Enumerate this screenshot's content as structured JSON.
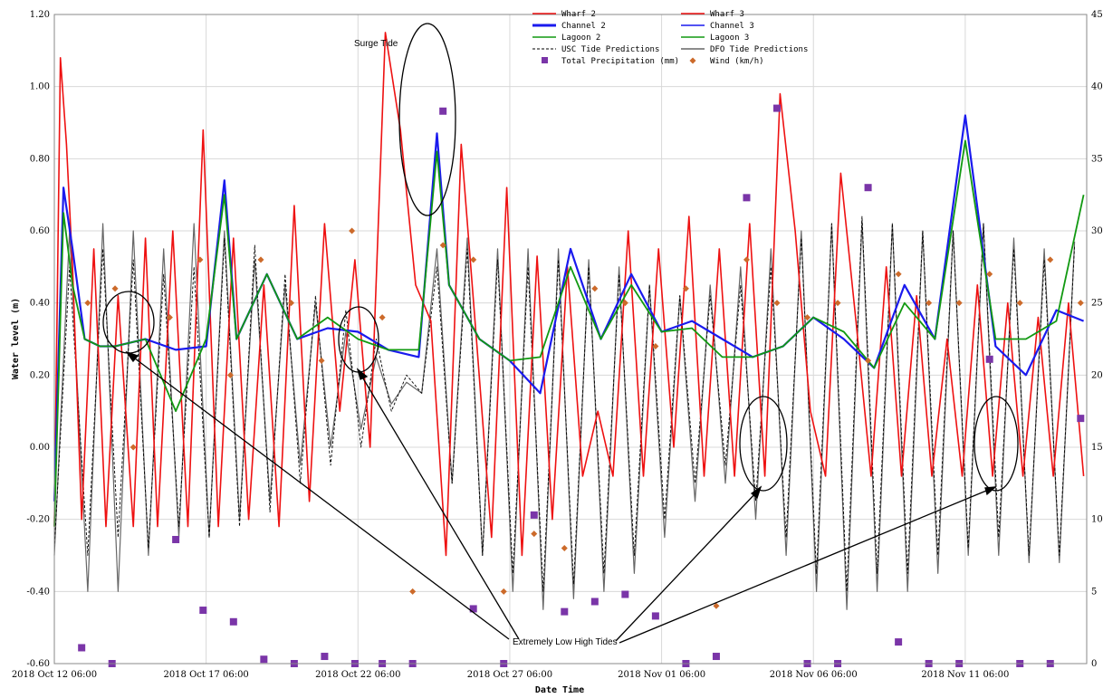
{
  "chart_data": {
    "type": "line",
    "xlabel": "Date Time",
    "ylabel": "Water level (m)",
    "xlim": [
      "2018-10-12 06:00",
      "2018-11-15 06:00"
    ],
    "ylim": [
      -0.6,
      1.2
    ],
    "y2lim": [
      0,
      45
    ],
    "x_ticks": [
      "2018 Oct 12  06:00",
      "2018 Oct 17  06:00",
      "2018 Oct 22  06:00",
      "2018 Oct 27  06:00",
      "2018 Nov 01  06:00",
      "2018 Nov 06  06:00",
      "2018 Nov 11  06:00"
    ],
    "y_ticks": [
      "-0.60",
      "-0.40",
      "-0.20",
      "0.00",
      "0.20",
      "0.40",
      "0.60",
      "0.80",
      "1.00",
      "1.20"
    ],
    "y2_ticks": [
      "0",
      "5",
      "10",
      "15",
      "20",
      "25",
      "30",
      "35",
      "40",
      "45"
    ],
    "grid": true,
    "legend_position": "top-center",
    "legend": [
      {
        "label": "Wharf 2",
        "color": "#ee1111",
        "style": "line"
      },
      {
        "label": "Wharf 3",
        "color": "#ee1111",
        "style": "line"
      },
      {
        "label": "Channel 2",
        "color": "#1a1aee",
        "style": "thick-line"
      },
      {
        "label": "Channel 3",
        "color": "#1a1aee",
        "style": "line"
      },
      {
        "label": "Lagoon 2",
        "color": "#119911",
        "style": "line"
      },
      {
        "label": "Lagoon 3",
        "color": "#119911",
        "style": "line"
      },
      {
        "label": "USC Tide Predictions",
        "color": "#000000",
        "style": "dashed"
      },
      {
        "label": "DFO Tide Predictions",
        "color": "#666666",
        "style": "line"
      },
      {
        "label": "Total Precipitation (mm)",
        "color": "#7a35a8",
        "style": "square"
      },
      {
        "label": "Wind (km/h)",
        "color": "#cc6a2a",
        "style": "diamond"
      }
    ],
    "annotations": [
      "Surge Tide",
      "Extremely Low High Tides"
    ],
    "series": [
      {
        "name": "Wharf 2",
        "x": [
          0,
          0.2,
          0.4,
          0.6,
          0.9,
          1.3,
          1.7,
          2.1,
          2.6,
          3.0,
          3.4,
          3.9,
          4.4,
          4.9,
          5.4,
          5.9,
          6.4,
          6.9,
          7.4,
          7.9,
          8.4,
          8.9,
          9.4,
          9.9,
          10.4,
          10.9,
          11.4,
          11.9,
          12.4,
          12.9,
          13.4,
          13.9,
          14.4,
          14.9,
          15.4,
          15.9,
          16.4,
          16.9,
          17.4,
          17.9,
          18.4,
          18.9,
          19.4,
          19.9,
          20.4,
          20.9,
          21.4,
          21.9,
          22.4,
          22.9,
          23.4,
          23.9,
          24.4,
          24.9,
          25.4,
          25.9,
          26.4,
          26.9,
          27.4,
          27.9,
          28.4,
          28.9,
          29.4,
          29.9,
          30.4,
          30.9,
          31.4,
          31.9,
          32.4,
          32.9,
          33.4,
          33.9
        ],
        "values": [
          -0.22,
          1.08,
          0.84,
          0.5,
          -0.2,
          0.55,
          -0.22,
          0.42,
          -0.22,
          0.58,
          -0.22,
          0.6,
          -0.22,
          0.88,
          -0.22,
          0.58,
          -0.2,
          0.45,
          -0.22,
          0.67,
          -0.15,
          0.62,
          0.1,
          0.52,
          0.0,
          1.15,
          0.88,
          0.45,
          0.35,
          -0.3,
          0.84,
          0.3,
          -0.25,
          0.72,
          -0.3,
          0.53,
          -0.2,
          0.5,
          -0.08,
          0.1,
          -0.08,
          0.6,
          -0.08,
          0.55,
          0.0,
          0.64,
          -0.08,
          0.55,
          -0.08,
          0.62,
          -0.08,
          0.98,
          0.6,
          0.1,
          -0.08,
          0.76,
          0.35,
          -0.08,
          0.5,
          -0.08,
          0.42,
          -0.08,
          0.3,
          -0.08,
          0.45,
          -0.08,
          0.4,
          -0.08,
          0.36,
          -0.08,
          0.4,
          -0.08
        ]
      },
      {
        "name": "Channel 2",
        "x": [
          0,
          0.3,
          0.6,
          1.0,
          1.5,
          2.0,
          3.0,
          4.0,
          5.0,
          5.6,
          6.0,
          7.0,
          8.0,
          9.0,
          10.0,
          11.0,
          12.0,
          12.6,
          13.0,
          14.0,
          15.0,
          16.0,
          17.0,
          18.0,
          19.0,
          20.0,
          21.0,
          22.0,
          23.0,
          24.0,
          25.0,
          26.0,
          27.0,
          28.0,
          29.0,
          30.0,
          31.0,
          32.0,
          33.0,
          33.9
        ],
        "values": [
          -0.15,
          0.72,
          0.55,
          0.3,
          0.28,
          0.28,
          0.3,
          0.27,
          0.28,
          0.74,
          0.3,
          0.48,
          0.3,
          0.33,
          0.32,
          0.27,
          0.25,
          0.87,
          0.45,
          0.3,
          0.24,
          0.15,
          0.55,
          0.3,
          0.48,
          0.32,
          0.35,
          0.3,
          0.25,
          0.28,
          0.36,
          0.3,
          0.22,
          0.45,
          0.3,
          0.92,
          0.28,
          0.2,
          0.38,
          0.35
        ]
      },
      {
        "name": "Lagoon 2",
        "x": [
          0,
          0.3,
          0.6,
          1.0,
          1.5,
          2.0,
          3.0,
          4.0,
          5.0,
          5.6,
          6.0,
          7.0,
          8.0,
          9.0,
          10.0,
          11.0,
          12.0,
          12.6,
          13.0,
          14.0,
          15.0,
          16.0,
          17.0,
          18.0,
          19.0,
          20.0,
          21.0,
          22.0,
          23.0,
          24.0,
          25.0,
          26.0,
          27.0,
          28.0,
          29.0,
          30.0,
          31.0,
          32.0,
          33.0,
          33.9
        ],
        "values": [
          -0.22,
          0.65,
          0.45,
          0.3,
          0.28,
          0.28,
          0.3,
          0.1,
          0.3,
          0.7,
          0.3,
          0.48,
          0.3,
          0.36,
          0.3,
          0.27,
          0.27,
          0.82,
          0.45,
          0.3,
          0.24,
          0.25,
          0.5,
          0.3,
          0.45,
          0.32,
          0.33,
          0.25,
          0.25,
          0.28,
          0.36,
          0.32,
          0.22,
          0.4,
          0.3,
          0.85,
          0.3,
          0.3,
          0.35,
          0.7
        ]
      },
      {
        "name": "USC Tide Predictions",
        "x": [
          0,
          0.5,
          1.1,
          1.6,
          2.1,
          2.6,
          3.1,
          3.6,
          4.1,
          4.6,
          5.1,
          5.6,
          6.1,
          6.6,
          7.1,
          7.6,
          8.1,
          8.6,
          9.1,
          9.6,
          10.1,
          10.6,
          11.1,
          11.6,
          12.1,
          12.6,
          13.1,
          13.6,
          14.1,
          14.6,
          15.1,
          15.6,
          16.1,
          16.6,
          17.1,
          17.6,
          18.1,
          18.6,
          19.1,
          19.6,
          20.1,
          20.6,
          21.1,
          21.6,
          22.1,
          22.6,
          23.1,
          23.6,
          24.1,
          24.6,
          25.1,
          25.6,
          26.1,
          26.6,
          27.1,
          27.6,
          28.1,
          28.6,
          29.1,
          29.6,
          30.1,
          30.6,
          31.1,
          31.6,
          32.1,
          32.6,
          33.1,
          33.6
        ],
        "values": [
          -0.28,
          0.5,
          -0.3,
          0.55,
          -0.25,
          0.52,
          -0.28,
          0.48,
          -0.22,
          0.5,
          -0.25,
          0.58,
          -0.22,
          0.56,
          -0.18,
          0.48,
          -0.1,
          0.42,
          -0.05,
          0.38,
          0.0,
          0.3,
          0.1,
          0.2,
          0.15,
          0.5,
          -0.1,
          0.55,
          -0.3,
          0.52,
          -0.35,
          0.5,
          -0.4,
          0.52,
          -0.38,
          0.5,
          -0.35,
          0.48,
          -0.3,
          0.45,
          -0.2,
          0.42,
          -0.1,
          0.42,
          -0.05,
          0.45,
          -0.15,
          0.5,
          -0.25,
          0.58,
          -0.35,
          0.62,
          -0.4,
          0.64,
          -0.35,
          0.62,
          -0.35,
          0.6,
          -0.3,
          0.6,
          -0.28,
          0.62,
          -0.25,
          0.55,
          -0.3,
          0.52,
          -0.3,
          0.56
        ]
      },
      {
        "name": "DFO Tide Predictions",
        "x": [
          0,
          0.5,
          1.1,
          1.6,
          2.1,
          2.6,
          3.1,
          3.6,
          4.1,
          4.6,
          5.1,
          5.6,
          6.1,
          6.6,
          7.1,
          7.6,
          8.1,
          8.6,
          9.1,
          9.6,
          10.1,
          10.6,
          11.1,
          11.6,
          12.1,
          12.6,
          13.1,
          13.6,
          14.1,
          14.6,
          15.1,
          15.6,
          16.1,
          16.6,
          17.1,
          17.6,
          18.1,
          18.6,
          19.1,
          19.6,
          20.1,
          20.6,
          21.1,
          21.6,
          22.1,
          22.6,
          23.1,
          23.6,
          24.1,
          24.6,
          25.1,
          25.6,
          26.1,
          26.6,
          27.1,
          27.6,
          28.1,
          28.6,
          29.1,
          29.6,
          30.1,
          30.6,
          31.1,
          31.6,
          32.1,
          32.6,
          33.1,
          33.6
        ],
        "values": [
          -0.3,
          0.6,
          -0.4,
          0.62,
          -0.4,
          0.6,
          -0.3,
          0.55,
          -0.25,
          0.62,
          -0.25,
          0.6,
          -0.2,
          0.52,
          -0.15,
          0.45,
          -0.05,
          0.4,
          0.0,
          0.32,
          0.05,
          0.25,
          0.12,
          0.18,
          0.15,
          0.55,
          -0.1,
          0.58,
          -0.3,
          0.55,
          -0.4,
          0.55,
          -0.45,
          0.55,
          -0.42,
          0.52,
          -0.4,
          0.5,
          -0.35,
          0.45,
          -0.25,
          0.42,
          -0.15,
          0.45,
          -0.1,
          0.5,
          -0.2,
          0.55,
          -0.3,
          0.6,
          -0.4,
          0.62,
          -0.45,
          0.63,
          -0.4,
          0.62,
          -0.4,
          0.6,
          -0.35,
          0.6,
          -0.3,
          0.62,
          -0.3,
          0.58,
          -0.32,
          0.55,
          -0.32,
          0.57
        ]
      },
      {
        "name": "Total Precipitation (mm)",
        "axis": "y2",
        "x": [
          0.9,
          1.9,
          4.0,
          4.9,
          5.9,
          6.9,
          7.9,
          8.9,
          9.9,
          10.8,
          11.8,
          12.8,
          13.8,
          14.8,
          15.8,
          16.8,
          17.8,
          18.8,
          19.8,
          20.8,
          21.8,
          22.8,
          23.8,
          24.8,
          25.8,
          26.8,
          27.8,
          28.8,
          29.8,
          30.8,
          31.8,
          32.8,
          33.8
        ],
        "values": [
          1.1,
          0,
          8.6,
          3.7,
          2.9,
          0.3,
          0.0,
          0.5,
          0.0,
          0.0,
          0.0,
          38.3,
          3.8,
          0.0,
          10.3,
          3.6,
          4.3,
          4.8,
          3.3,
          0.0,
          0.5,
          32.3,
          38.5,
          0.0,
          0.0,
          33.0,
          1.5,
          0.0,
          0.0,
          21.1,
          0.0,
          0.0,
          17.0
        ]
      },
      {
        "name": "Wind (km/h)",
        "axis": "y2",
        "x": [
          1.1,
          2.0,
          2.6,
          3.8,
          4.8,
          5.8,
          6.8,
          7.8,
          8.8,
          9.8,
          10.8,
          11.8,
          12.8,
          13.8,
          14.8,
          15.8,
          16.8,
          17.8,
          18.8,
          19.8,
          20.8,
          21.8,
          22.8,
          23.8,
          24.8,
          25.8,
          26.8,
          27.8,
          28.8,
          29.8,
          30.8,
          31.8,
          32.8,
          33.8
        ],
        "values": [
          25,
          26,
          15,
          24,
          28,
          20,
          28,
          25,
          21,
          30,
          24,
          5,
          29,
          28,
          5,
          9,
          8,
          26,
          25,
          22,
          26,
          4,
          28,
          25,
          24,
          25,
          21,
          27,
          25,
          25,
          27,
          25,
          28,
          25
        ]
      }
    ]
  }
}
